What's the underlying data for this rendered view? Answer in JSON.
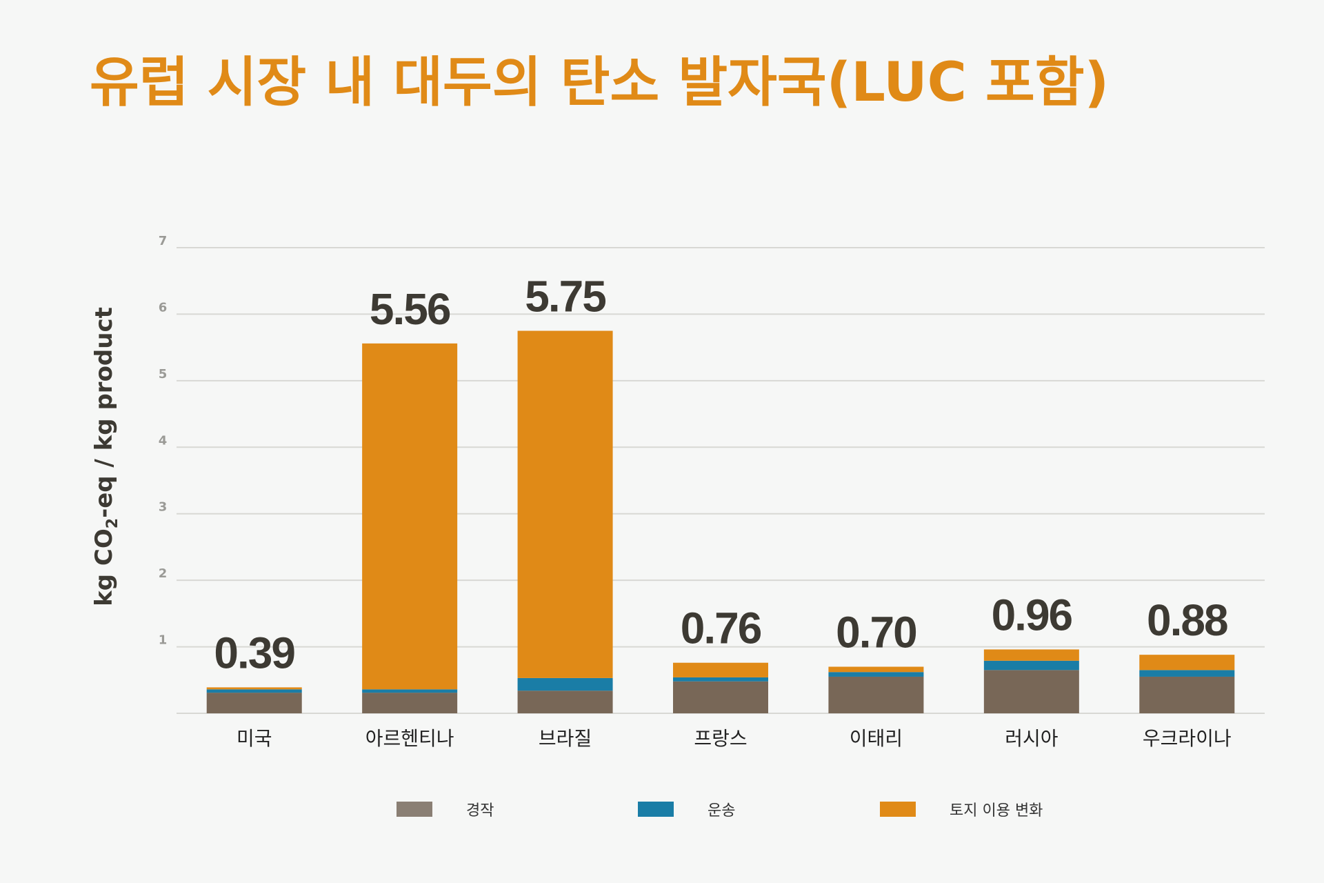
{
  "chart_data": {
    "type": "bar",
    "stacked": true,
    "title": "유럽 시장 내 대두의 탄소 발자국(LUC 포함)",
    "ylabel_parts": [
      "kg CO",
      "2",
      "-eq / kg product"
    ],
    "ylim": [
      0,
      7
    ],
    "yticks": [
      "1",
      "2",
      "3",
      "4",
      "5",
      "6",
      "7"
    ],
    "grid": true,
    "legend_position": "bottom",
    "categories": [
      "미국",
      "아르헨티나",
      "브라질",
      "프랑스",
      "이태리",
      "러시아",
      "우크라이나"
    ],
    "totals": [
      "0.39",
      "5.56",
      "5.75",
      "0.76",
      "0.70",
      "0.96",
      "0.88"
    ],
    "series": [
      {
        "name": "경작",
        "color": "#786757",
        "values": [
          0.31,
          0.31,
          0.34,
          0.48,
          0.55,
          0.65,
          0.55
        ]
      },
      {
        "name": "운송",
        "color": "#1a7da6",
        "values": [
          0.05,
          0.05,
          0.19,
          0.06,
          0.07,
          0.14,
          0.1
        ]
      },
      {
        "name": "토지 이용 변화",
        "color": "#e08a17",
        "values": [
          0.03,
          5.2,
          5.22,
          0.22,
          0.08,
          0.17,
          0.23
        ]
      }
    ],
    "colors": {
      "title": "#e08a17",
      "axis_label": "#3d3a33",
      "total_label": "#3d3a33",
      "grid": "#d8d8d4",
      "tick": "#9a9a96",
      "legend_cultivation": "#8a7f74"
    }
  }
}
